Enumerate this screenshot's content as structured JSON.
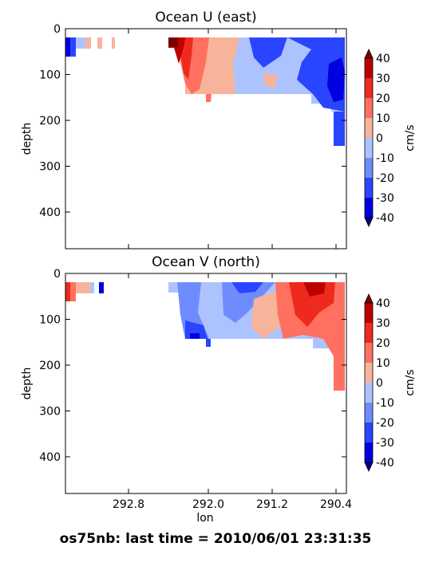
{
  "footer": "os75nb: last time = 2010/06/01 23:31:35",
  "xaxis": {
    "label": "lon",
    "ticks": [
      "292.8",
      "292.0",
      "291.2",
      "290.4"
    ]
  },
  "chart_data": [
    {
      "type": "contour",
      "title": "Ocean U (east)",
      "xlabel": "",
      "ylabel": "depth",
      "ylim": [
        480,
        0
      ],
      "yticks": [
        0,
        100,
        200,
        300,
        400
      ],
      "colorbar": {
        "label": "cm/s",
        "levels": [
          -40,
          -30,
          -20,
          -10,
          0,
          10,
          20,
          30,
          40
        ],
        "colors": [
          "#0000e0",
          "#2a45ff",
          "#6f8cff",
          "#adc3ff",
          "#f8b39b",
          "#ff7060",
          "#ee2a1e",
          "#bf0000"
        ],
        "extend_colors": [
          "#00008b",
          "#7a0000"
        ]
      },
      "data_region": {
        "lon_range": [
          293.62,
          290.3
        ],
        "depth_range": [
          22,
          183
        ]
      }
    },
    {
      "type": "contour",
      "title": "Ocean V (north)",
      "xlabel": "lon",
      "ylabel": "depth",
      "ylim": [
        480,
        0
      ],
      "yticks": [
        0,
        100,
        200,
        300,
        400
      ],
      "colorbar": {
        "label": "cm/s",
        "levels": [
          -40,
          -30,
          -20,
          -10,
          0,
          10,
          20,
          30,
          40
        ],
        "colors": [
          "#0000e0",
          "#2a45ff",
          "#6f8cff",
          "#adc3ff",
          "#f8b39b",
          "#ff7060",
          "#ee2a1e",
          "#bf0000"
        ],
        "extend_colors": [
          "#00008b",
          "#7a0000"
        ]
      },
      "data_region": {
        "lon_range": [
          293.62,
          290.3
        ],
        "depth_range": [
          22,
          183
        ]
      }
    }
  ]
}
